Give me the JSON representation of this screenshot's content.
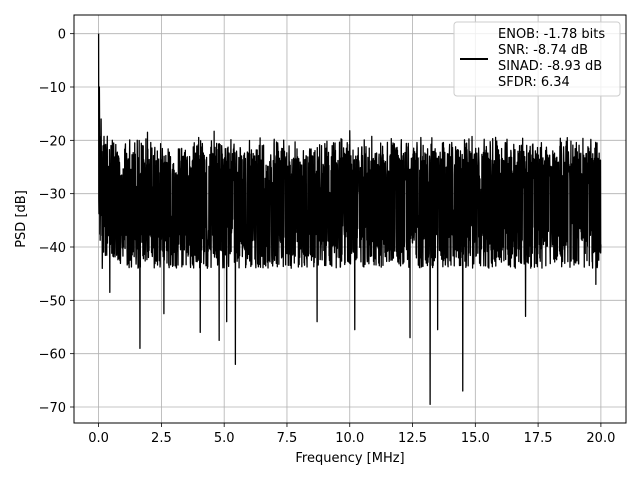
{
  "chart_data": {
    "type": "line",
    "xlabel": "Frequency [MHz]",
    "ylabel": "PSD [dB]",
    "xlim": [
      -0.98,
      21.0
    ],
    "ylim": [
      -73.0,
      3.5
    ],
    "xticks": [
      0.0,
      2.5,
      5.0,
      7.5,
      10.0,
      12.5,
      15.0,
      17.5,
      20.0
    ],
    "xtick_labels": [
      "0.0",
      "2.5",
      "5.0",
      "7.5",
      "10.0",
      "12.5",
      "15.0",
      "17.5",
      "20.0"
    ],
    "yticks": [
      0,
      -10,
      -20,
      -30,
      -40,
      -50,
      -60,
      -70
    ],
    "ytick_labels": [
      "0",
      "−10",
      "−20",
      "−30",
      "−40",
      "−50",
      "−60",
      "−70"
    ],
    "grid": true,
    "legend_position": "top-right",
    "line_color": "#000000",
    "series": [
      {
        "name": "ENOB: -1.78 bits\nSNR: -8.74 dB\nSINAD: -8.93 dB\nSFDR: 6.34",
        "x_start": 0.0,
        "x_end": 20.0,
        "noise_floor_mean": -30,
        "noise_upper": -22,
        "noise_lower": -40,
        "peaks": [
          {
            "x": 0.0,
            "y": 0
          },
          {
            "x": 0.03,
            "y": -10
          },
          {
            "x": 0.1,
            "y": -16
          },
          {
            "x": 1.95,
            "y": -18.5
          },
          {
            "x": 4.6,
            "y": -18.3
          },
          {
            "x": 10.0,
            "y": -18.2
          }
        ],
        "dips": [
          {
            "x": 0.15,
            "y": -44
          },
          {
            "x": 0.45,
            "y": -48.5
          },
          {
            "x": 1.65,
            "y": -59
          },
          {
            "x": 2.6,
            "y": -52.5
          },
          {
            "x": 4.05,
            "y": -56
          },
          {
            "x": 4.8,
            "y": -57.5
          },
          {
            "x": 5.1,
            "y": -54
          },
          {
            "x": 5.45,
            "y": -62
          },
          {
            "x": 8.7,
            "y": -54
          },
          {
            "x": 10.2,
            "y": -55.5
          },
          {
            "x": 12.4,
            "y": -57
          },
          {
            "x": 13.2,
            "y": -69.5
          },
          {
            "x": 13.5,
            "y": -55.5
          },
          {
            "x": 14.5,
            "y": -67
          },
          {
            "x": 17.0,
            "y": -53
          },
          {
            "x": 19.8,
            "y": -47
          }
        ]
      }
    ]
  }
}
